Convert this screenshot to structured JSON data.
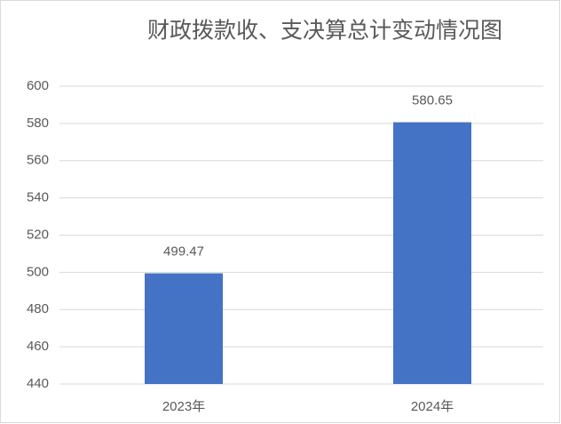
{
  "chart_data": {
    "type": "bar",
    "title": "财政拨款收、支决算总计变动情况图",
    "categories": [
      "2023年",
      "2024年"
    ],
    "values": [
      499.47,
      580.65
    ],
    "color": "#4472c4",
    "ylim": [
      440,
      600
    ],
    "yticks": [
      440,
      460,
      480,
      500,
      520,
      540,
      560,
      580,
      600
    ],
    "grid": true
  }
}
